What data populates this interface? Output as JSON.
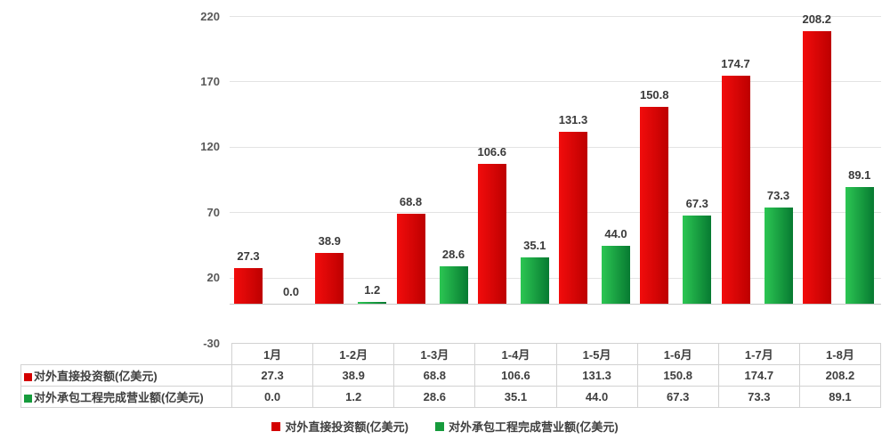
{
  "chart_data": {
    "type": "bar",
    "title": "",
    "categories": [
      "1月",
      "1-2月",
      "1-3月",
      "1-4月",
      "1-5月",
      "1-6月",
      "1-7月",
      "1-8月"
    ],
    "series": [
      {
        "name": "对外直接投资额(亿美元)",
        "color": "#d40000",
        "gradient": [
          "#f20c0c",
          "#bd0000"
        ],
        "values": [
          27.3,
          38.9,
          68.8,
          106.6,
          131.3,
          150.8,
          174.7,
          208.2
        ]
      },
      {
        "name": "对外承包工程完成营业额(亿美元)",
        "color": "#169b3c",
        "gradient": [
          "#2cc653",
          "#077a31"
        ],
        "values": [
          0.0,
          1.2,
          28.6,
          35.1,
          44.0,
          67.3,
          73.3,
          89.1
        ]
      }
    ],
    "y_axis": {
      "min": -30,
      "max": 220,
      "step": 50,
      "ticks": [
        220,
        170,
        120,
        70,
        20,
        -30
      ]
    },
    "grid": true,
    "legend_position": "bottom",
    "value_label_decimals": 1
  },
  "table": {
    "columns": [
      "1月",
      "1-2月",
      "1-3月",
      "1-4月",
      "1-5月",
      "1-6月",
      "1-7月",
      "1-8月"
    ],
    "rows": [
      {
        "label": "对外直接投资额(亿美元)",
        "marker_color": "#d40000",
        "values": [
          "27.3",
          "38.9",
          "68.8",
          "106.6",
          "131.3",
          "150.8",
          "174.7",
          "208.2"
        ]
      },
      {
        "label": "对外承包工程完成营业额(亿美元)",
        "marker_color": "#169b3c",
        "values": [
          "0.0",
          "1.2",
          "28.6",
          "35.1",
          "44.0",
          "67.3",
          "73.3",
          "89.1"
        ]
      }
    ]
  },
  "legend": {
    "items": [
      {
        "label": "对外直接投资额(亿美元)",
        "color": "#d40000"
      },
      {
        "label": "对外承包工程完成营业额(亿美元)",
        "color": "#169b3c"
      }
    ]
  }
}
